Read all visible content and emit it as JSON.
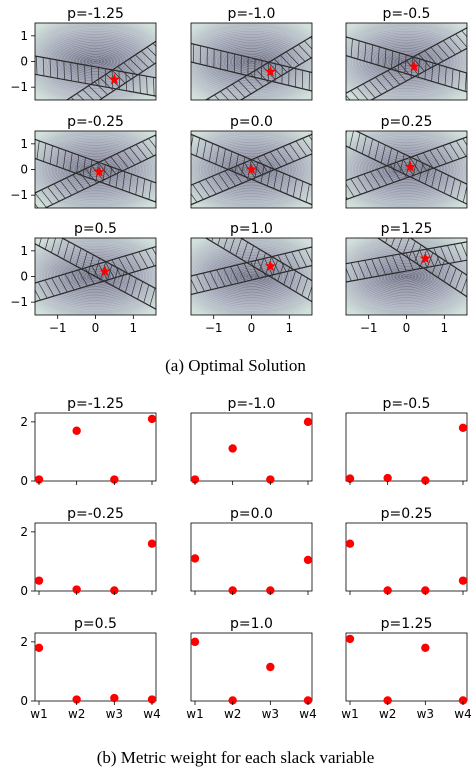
{
  "figure": {
    "caption_a": "(a) Optimal Solution",
    "caption_b": "(b) Metric weight for each slack variable"
  },
  "chart_data": [
    {
      "type": "contour",
      "title": "",
      "panel_titles": [
        "p=-1.25",
        "p=-1.0",
        "p=-0.5",
        "p=-0.25",
        "p=0.0",
        "p=0.25",
        "p=0.5",
        "p=1.0",
        "p=1.25"
      ],
      "xlim": [
        -1.6,
        1.6
      ],
      "ylim": [
        -1.5,
        1.5
      ],
      "xticks": [
        -1,
        0,
        1
      ],
      "yticks": [
        1,
        0,
        -1
      ],
      "xtick_labels": [
        "−1",
        "0",
        "1"
      ],
      "ytick_labels": [
        "1",
        "0",
        "−1"
      ],
      "optimal_points": [
        {
          "x": 0.5,
          "y": -0.7
        },
        {
          "x": 0.5,
          "y": -0.4
        },
        {
          "x": 0.2,
          "y": -0.2
        },
        {
          "x": 0.1,
          "y": -0.1
        },
        {
          "x": 0.0,
          "y": 0.0
        },
        {
          "x": 0.1,
          "y": 0.1
        },
        {
          "x": 0.25,
          "y": 0.2
        },
        {
          "x": 0.5,
          "y": 0.4
        },
        {
          "x": 0.5,
          "y": 0.7
        }
      ],
      "star_color": "#ff0000"
    },
    {
      "type": "scatter",
      "title": "",
      "panel_titles": [
        "p=-1.25",
        "p=-1.0",
        "p=-0.5",
        "p=-0.25",
        "p=0.0",
        "p=0.25",
        "p=0.5",
        "p=1.0",
        "p=1.25"
      ],
      "categories": [
        "w1",
        "w2",
        "w3",
        "w4"
      ],
      "ylim": [
        0,
        2.3
      ],
      "yticks": [
        0,
        2
      ],
      "series": [
        {
          "values": [
            0.05,
            1.7,
            0.05,
            2.1
          ]
        },
        {
          "values": [
            0.05,
            1.1,
            0.05,
            2.0
          ]
        },
        {
          "values": [
            0.08,
            0.1,
            0.02,
            1.8
          ]
        },
        {
          "values": [
            0.35,
            0.05,
            0.02,
            1.6
          ]
        },
        {
          "values": [
            1.1,
            0.02,
            0.02,
            1.05
          ]
        },
        {
          "values": [
            1.6,
            0.02,
            0.02,
            0.35
          ]
        },
        {
          "values": [
            1.8,
            0.05,
            0.1,
            0.05
          ]
        },
        {
          "values": [
            2.0,
            0.02,
            1.15,
            0.02
          ]
        },
        {
          "values": [
            2.1,
            0.02,
            1.8,
            0.02
          ]
        }
      ],
      "marker_color": "#ff0000"
    }
  ]
}
